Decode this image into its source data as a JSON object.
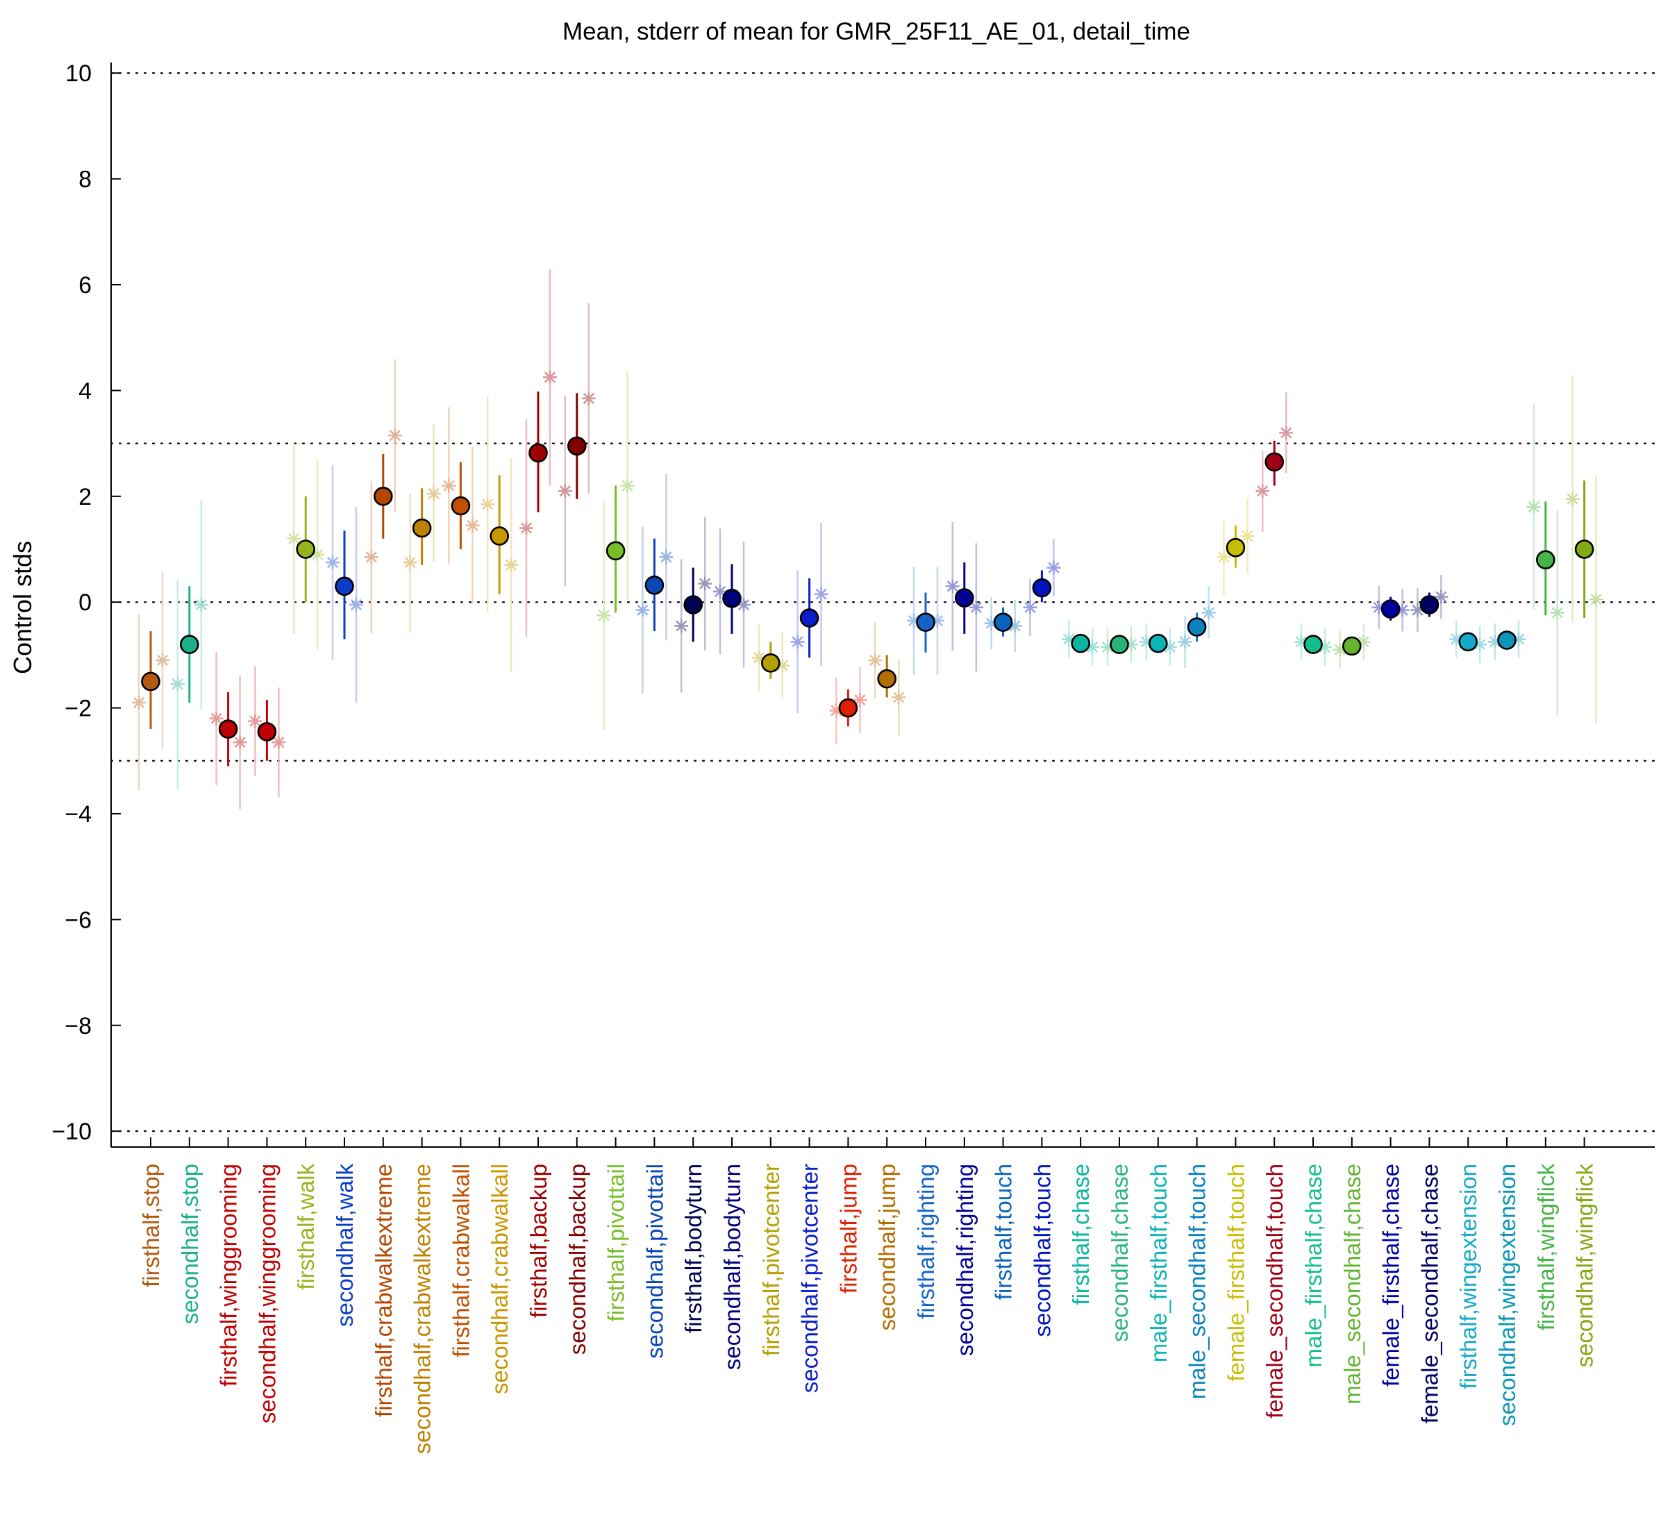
{
  "chart_data": {
    "type": "scatter",
    "title": "Mean, stderr of mean for GMR_25F11_AE_01, detail_time",
    "xlabel": "",
    "ylabel": "Control stds",
    "ylim": [
      -10.3,
      10.2
    ],
    "yticks": [
      10,
      8,
      6,
      4,
      2,
      0,
      -2,
      -4,
      -6,
      -8,
      -10
    ],
    "ytick_labels": [
      "10",
      "8",
      "6",
      "4",
      "2",
      "0",
      "−2",
      "−4",
      "−6",
      "−8",
      "−10"
    ],
    "reference_lines": [
      10,
      3,
      0,
      -3,
      -10
    ],
    "grid": false,
    "legend": "none",
    "marker_edge_color": "#000000",
    "categories": [
      {
        "label": "firsthalf,stop",
        "color": "#b05a10",
        "mean": -1.5,
        "err_lo": -2.4,
        "err_hi": -0.55
      },
      {
        "label": "secondhalf,stop",
        "color": "#1ab08a",
        "mean": -0.8,
        "err_lo": -1.9,
        "err_hi": 0.3
      },
      {
        "label": "firsthalf,winggrooming",
        "color": "#c00000",
        "mean": -2.4,
        "err_lo": -3.1,
        "err_hi": -1.7
      },
      {
        "label": "secondhalf,winggrooming",
        "color": "#c00000",
        "mean": -2.45,
        "err_lo": -3.0,
        "err_hi": -1.85
      },
      {
        "label": "firsthalf,walk",
        "color": "#96b41e",
        "mean": 1.0,
        "err_lo": 0.0,
        "err_hi": 2.0
      },
      {
        "label": "secondhalf,walk",
        "color": "#0a3cc8",
        "mean": 0.3,
        "err_lo": -0.7,
        "err_hi": 1.35
      },
      {
        "label": "firsthalf,crabwalkextreme",
        "color": "#b44600",
        "mean": 2.0,
        "err_lo": 1.2,
        "err_hi": 2.8
      },
      {
        "label": "secondhalf,crabwalkextreme",
        "color": "#be8200",
        "mean": 1.4,
        "err_lo": 0.7,
        "err_hi": 2.15
      },
      {
        "label": "firsthalf,crabwalkall",
        "color": "#c05000",
        "mean": 1.82,
        "err_lo": 1.0,
        "err_hi": 2.65
      },
      {
        "label": "secondhalf,crabwalkall",
        "color": "#c89600",
        "mean": 1.25,
        "err_lo": 0.15,
        "err_hi": 2.4
      },
      {
        "label": "firsthalf,backup",
        "color": "#a00000",
        "mean": 2.82,
        "err_lo": 1.7,
        "err_hi": 3.98
      },
      {
        "label": "secondhalf,backup",
        "color": "#820000",
        "mean": 2.95,
        "err_lo": 1.95,
        "err_hi": 3.95
      },
      {
        "label": "firsthalf,pivottail",
        "color": "#78be28",
        "mean": 0.97,
        "err_lo": -0.2,
        "err_hi": 2.2
      },
      {
        "label": "secondhalf,pivottail",
        "color": "#0a46b4",
        "mean": 0.32,
        "err_lo": -0.55,
        "err_hi": 1.2
      },
      {
        "label": "firsthalf,bodyturn",
        "color": "#000050",
        "mean": -0.05,
        "err_lo": -0.75,
        "err_hi": 0.65
      },
      {
        "label": "secondhalf,bodyturn",
        "color": "#00007d",
        "mean": 0.07,
        "err_lo": -0.6,
        "err_hi": 0.72
      },
      {
        "label": "firsthalf,pivotcenter",
        "color": "#b4a000",
        "mean": -1.15,
        "err_lo": -1.45,
        "err_hi": -0.75
      },
      {
        "label": "secondhalf,pivotcenter",
        "color": "#0a1ec8",
        "mean": -0.3,
        "err_lo": -1.05,
        "err_hi": 0.45
      },
      {
        "label": "firsthalf,jump",
        "color": "#e02000",
        "mean": -2.0,
        "err_lo": -2.35,
        "err_hi": -1.65
      },
      {
        "label": "secondhalf,jump",
        "color": "#b46e00",
        "mean": -1.45,
        "err_lo": -1.8,
        "err_hi": -1.0
      },
      {
        "label": "firsthalf,righting",
        "color": "#1464c8",
        "mean": -0.38,
        "err_lo": -0.95,
        "err_hi": 0.18
      },
      {
        "label": "secondhalf,righting",
        "color": "#000096",
        "mean": 0.08,
        "err_lo": -0.6,
        "err_hi": 0.75
      },
      {
        "label": "firsthalf,touch",
        "color": "#0a64be",
        "mean": -0.38,
        "err_lo": -0.65,
        "err_hi": -0.1
      },
      {
        "label": "secondhalf,touch",
        "color": "#0014be",
        "mean": 0.27,
        "err_lo": 0.0,
        "err_hi": 0.6
      },
      {
        "label": "firsthalf,chase",
        "color": "#0ab4a0",
        "mean": -0.78,
        "err_lo": -0.9,
        "err_hi": -0.66
      },
      {
        "label": "secondhalf,chase",
        "color": "#28b478",
        "mean": -0.8,
        "err_lo": -0.92,
        "err_hi": -0.68
      },
      {
        "label": "male_firsthalf,touch",
        "color": "#0ab4b4",
        "mean": -0.78,
        "err_lo": -0.92,
        "err_hi": -0.62
      },
      {
        "label": "male_secondhalf,touch",
        "color": "#0a82be",
        "mean": -0.47,
        "err_lo": -0.75,
        "err_hi": -0.2
      },
      {
        "label": "female_firsthalf,touch",
        "color": "#c8be00",
        "mean": 1.03,
        "err_lo": 0.65,
        "err_hi": 1.45
      },
      {
        "label": "female_secondhalf,touch",
        "color": "#a00014",
        "mean": 2.65,
        "err_lo": 2.2,
        "err_hi": 3.05
      },
      {
        "label": "male_firsthalf,chase",
        "color": "#14be8c",
        "mean": -0.8,
        "err_lo": -0.92,
        "err_hi": -0.68
      },
      {
        "label": "male_secondhalf,chase",
        "color": "#64b432",
        "mean": -0.83,
        "err_lo": -0.95,
        "err_hi": -0.71
      },
      {
        "label": "female_firsthalf,chase",
        "color": "#0000a0",
        "mean": -0.13,
        "err_lo": -0.35,
        "err_hi": 0.1
      },
      {
        "label": "female_secondhalf,chase",
        "color": "#000064",
        "mean": -0.05,
        "err_lo": -0.28,
        "err_hi": 0.18
      },
      {
        "label": "firsthalf,wingextension",
        "color": "#14aac8",
        "mean": -0.75,
        "err_lo": -0.87,
        "err_hi": -0.63
      },
      {
        "label": "secondhalf,wingextension",
        "color": "#0a96b4",
        "mean": -0.72,
        "err_lo": -0.84,
        "err_hi": -0.6
      },
      {
        "label": "firsthalf,wingflick",
        "color": "#46b446",
        "mean": 0.8,
        "err_lo": -0.25,
        "err_hi": 1.9
      },
      {
        "label": "secondhalf,wingflick",
        "color": "#82aa14",
        "mean": 1.0,
        "err_lo": -0.3,
        "err_hi": 2.3
      }
    ],
    "replicates": [
      {
        "a": -1.9,
        "b": -1.1
      },
      {
        "a": -1.55,
        "b": -0.05
      },
      {
        "a": -2.2,
        "b": -2.65
      },
      {
        "a": -2.25,
        "b": -2.65
      },
      {
        "a": 1.2,
        "b": 0.9
      },
      {
        "a": 0.75,
        "b": -0.05
      },
      {
        "a": 0.85,
        "b": 3.15
      },
      {
        "a": 0.75,
        "b": 2.05
      },
      {
        "a": 2.2,
        "b": 1.45
      },
      {
        "a": 1.85,
        "b": 0.7
      },
      {
        "a": 1.4,
        "b": 4.25
      },
      {
        "a": 2.1,
        "b": 3.85
      },
      {
        "a": -0.25,
        "b": 2.2
      },
      {
        "a": -0.15,
        "b": 0.85
      },
      {
        "a": -0.45,
        "b": 0.35
      },
      {
        "a": 0.2,
        "b": -0.05
      },
      {
        "a": -1.05,
        "b": -1.2
      },
      {
        "a": -0.75,
        "b": 0.15
      },
      {
        "a": -2.05,
        "b": -1.85
      },
      {
        "a": -1.1,
        "b": -1.8
      },
      {
        "a": -0.35,
        "b": -0.35
      },
      {
        "a": 0.3,
        "b": -0.1
      },
      {
        "a": -0.4,
        "b": -0.45
      },
      {
        "a": -0.1,
        "b": 0.65
      },
      {
        "a": -0.7,
        "b": -0.85
      },
      {
        "a": -0.85,
        "b": -0.8
      },
      {
        "a": -0.75,
        "b": -0.85
      },
      {
        "a": -0.75,
        "b": -0.2
      },
      {
        "a": 0.85,
        "b": 1.25
      },
      {
        "a": 2.1,
        "b": 3.2
      },
      {
        "a": -0.75,
        "b": -0.85
      },
      {
        "a": -0.9,
        "b": -0.75
      },
      {
        "a": -0.1,
        "b": -0.15
      },
      {
        "a": -0.15,
        "b": 0.1
      },
      {
        "a": -0.7,
        "b": -0.8
      },
      {
        "a": -0.75,
        "b": -0.7
      },
      {
        "a": 1.8,
        "b": -0.2
      },
      {
        "a": 1.95,
        "b": 0.05
      }
    ]
  }
}
